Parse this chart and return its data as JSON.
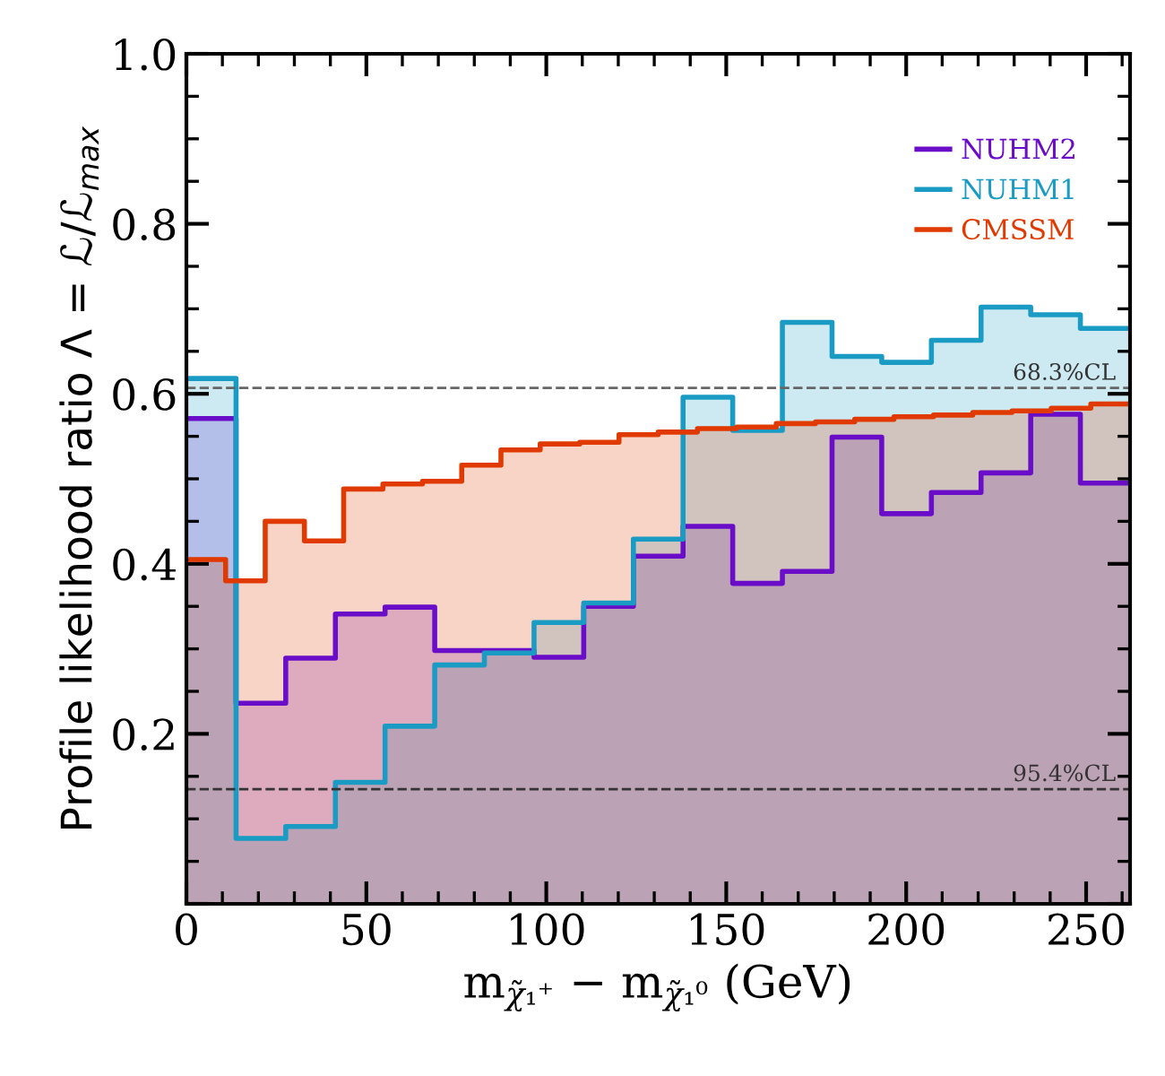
{
  "chart_data": {
    "type": "area",
    "xlabel": "m$_{χ̃₁⁺}$ − m$_{χ̃₁⁰}$ (GeV)",
    "ylabel": "Profile likelihood ratio Λ = ℒ/ℒ$_{max}$",
    "xlim": [
      0,
      262.2
    ],
    "xticks": [
      0,
      50,
      100,
      150,
      200,
      250
    ],
    "ylim": [
      0,
      1
    ],
    "yticks": [
      {
        "value": 0,
        "label": null
      },
      0.2,
      0.4,
      0.6,
      0.8,
      {
        "value": 1.0,
        "label": "1.0"
      }
    ],
    "legend": "top right",
    "grid": false,
    "ref_lines": [
      {
        "axis": "y",
        "value": 0.607,
        "label": "68.3%CL",
        "color": "#666666",
        "line_style": "dashed"
      },
      {
        "axis": "y",
        "value": 0.135,
        "label": "95.4%CL",
        "color": "#333333",
        "line_style": "dashed"
      }
    ],
    "series": [
      {
        "name": "NUHM2",
        "color": "#6a0dc8",
        "x": [
          0,
          13.8,
          13.8,
          27.6,
          27.6,
          41.4,
          41.4,
          55.2,
          55.2,
          69,
          69,
          82.8,
          82.8,
          96.6,
          96.6,
          110.4,
          110.4,
          124.2,
          124.2,
          138,
          138,
          151.8,
          151.8,
          165.6,
          165.6,
          179.4,
          179.4,
          193.2,
          193.2,
          207,
          207,
          220.8,
          220.8,
          234.6,
          234.6,
          248.4,
          248.4,
          262.2
        ],
        "values": [
          0.571,
          0.571,
          0.236,
          0.236,
          0.289,
          0.289,
          0.341,
          0.341,
          0.349,
          0.349,
          0.298,
          0.298,
          0.298,
          0.298,
          0.29,
          0.29,
          0.35,
          0.35,
          0.409,
          0.409,
          0.444,
          0.444,
          0.377,
          0.377,
          0.391,
          0.391,
          0.549,
          0.549,
          0.459,
          0.459,
          0.484,
          0.484,
          0.507,
          0.507,
          0.576,
          0.576,
          0.495,
          0.495
        ]
      },
      {
        "name": "NUHM1",
        "color": "#1a9bc4",
        "x": [
          0,
          13.8,
          13.8,
          27.6,
          27.6,
          41.4,
          41.4,
          55.2,
          55.2,
          69,
          69,
          82.8,
          82.8,
          96.6,
          96.6,
          110.4,
          110.4,
          124.2,
          124.2,
          138,
          138,
          151.8,
          151.8,
          165.6,
          165.6,
          179.4,
          179.4,
          193.2,
          193.2,
          207,
          207,
          220.8,
          220.8,
          234.6,
          234.6,
          248.4,
          248.4,
          262.2
        ],
        "values": [
          0.618,
          0.618,
          0.077,
          0.077,
          0.091,
          0.091,
          0.143,
          0.143,
          0.209,
          0.209,
          0.281,
          0.281,
          0.295,
          0.295,
          0.331,
          0.331,
          0.354,
          0.354,
          0.429,
          0.429,
          0.596,
          0.596,
          0.557,
          0.557,
          0.684,
          0.684,
          0.644,
          0.644,
          0.637,
          0.637,
          0.663,
          0.663,
          0.702,
          0.702,
          0.693,
          0.693,
          0.677,
          0.677
        ]
      },
      {
        "name": "CMSSM",
        "color": "#e03a00",
        "x": [
          0,
          10.9,
          10.9,
          21.9,
          21.9,
          32.8,
          32.8,
          43.7,
          43.7,
          54.6,
          54.6,
          65.6,
          65.6,
          76.5,
          76.5,
          87.4,
          87.4,
          98.3,
          98.3,
          109.3,
          109.3,
          120.2,
          120.2,
          131.1,
          131.1,
          142,
          142,
          152.9,
          152.9,
          163.9,
          163.9,
          174.8,
          174.8,
          185.7,
          185.7,
          196.6,
          196.6,
          207.6,
          207.6,
          218.5,
          218.5,
          229.4,
          229.4,
          240.3,
          240.3,
          251.3,
          251.3,
          262.2
        ],
        "values": [
          0.405,
          0.405,
          0.38,
          0.38,
          0.45,
          0.45,
          0.427,
          0.427,
          0.488,
          0.488,
          0.494,
          0.494,
          0.497,
          0.497,
          0.516,
          0.516,
          0.534,
          0.534,
          0.541,
          0.541,
          0.543,
          0.543,
          0.552,
          0.552,
          0.555,
          0.555,
          0.559,
          0.559,
          0.561,
          0.561,
          0.565,
          0.565,
          0.567,
          0.567,
          0.57,
          0.57,
          0.573,
          0.573,
          0.575,
          0.575,
          0.578,
          0.578,
          0.58,
          0.58,
          0.583,
          0.583,
          0.588,
          0.588
        ]
      }
    ]
  }
}
